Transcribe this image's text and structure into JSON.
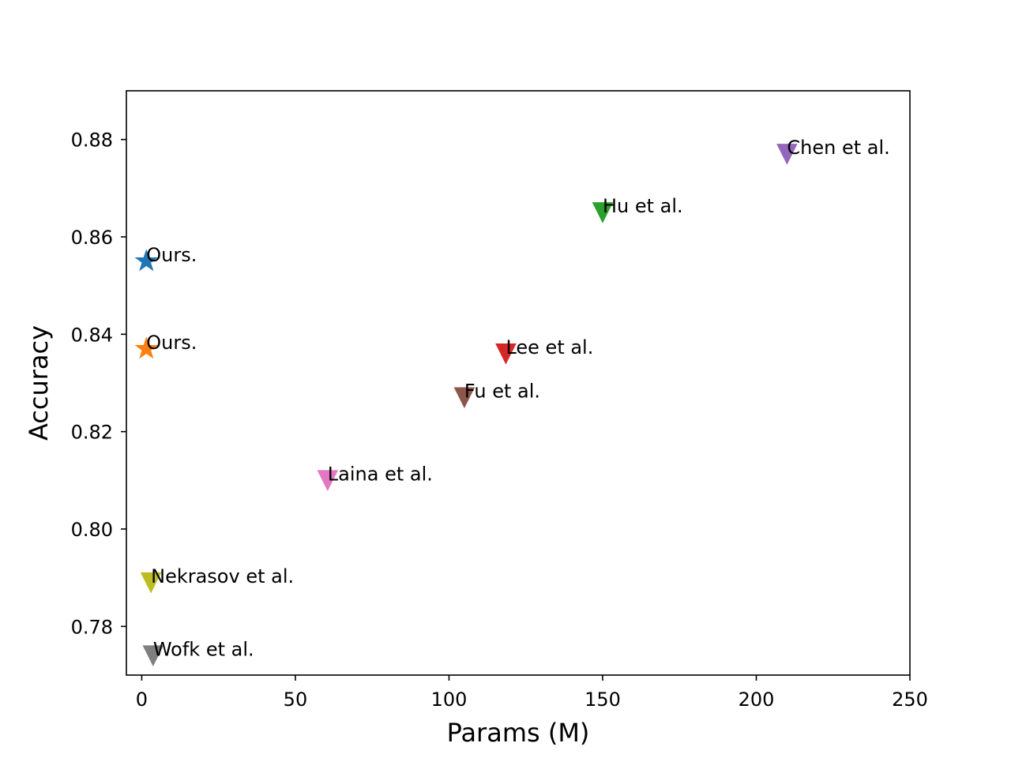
{
  "chart_data": {
    "type": "scatter",
    "title": "",
    "xlabel": "Params (M)",
    "ylabel": "Accuracy",
    "xlim": [
      -5,
      250
    ],
    "ylim": [
      0.77,
      0.89
    ],
    "xticks": [
      0,
      50,
      100,
      150,
      200,
      250
    ],
    "yticks": [
      0.78,
      0.8,
      0.82,
      0.84,
      0.86,
      0.88
    ],
    "xtick_labels": [
      "0",
      "50",
      "100",
      "150",
      "200",
      "250"
    ],
    "ytick_labels": [
      "0.78",
      "0.80",
      "0.82",
      "0.84",
      "0.86",
      "0.88"
    ],
    "grid": false,
    "legend": "none",
    "points": [
      {
        "label": "Ours.",
        "x": 1.5,
        "y": 0.855,
        "marker": "star",
        "color": "#1f77b4"
      },
      {
        "label": "Ours.",
        "x": 1.5,
        "y": 0.837,
        "marker": "star",
        "color": "#ff7f0e"
      },
      {
        "label": "Chen et al.",
        "x": 210,
        "y": 0.877,
        "marker": "triangle-down",
        "color": "#9467bd"
      },
      {
        "label": "Hu et al.",
        "x": 150,
        "y": 0.865,
        "marker": "triangle-down",
        "color": "#2ca02c"
      },
      {
        "label": "Lee et al.",
        "x": 118.5,
        "y": 0.836,
        "marker": "triangle-down",
        "color": "#d62728"
      },
      {
        "label": "Fu et al.",
        "x": 105,
        "y": 0.827,
        "marker": "triangle-down",
        "color": "#8c564b"
      },
      {
        "label": "Laina et al.",
        "x": 60.5,
        "y": 0.81,
        "marker": "triangle-down",
        "color": "#e377c2"
      },
      {
        "label": "Nekrasov et al.",
        "x": 3,
        "y": 0.789,
        "marker": "triangle-down",
        "color": "#bcbd22"
      },
      {
        "label": "Wofk et al.",
        "x": 3.7,
        "y": 0.774,
        "marker": "triangle-down",
        "color": "#7f7f7f"
      }
    ]
  }
}
